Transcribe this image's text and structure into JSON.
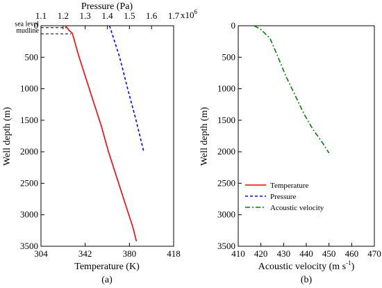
{
  "chart_data": [
    {
      "type": "line",
      "panel_label": "(a)",
      "y_axis": {
        "label": "Well depth (m)",
        "range": [
          0,
          3500
        ],
        "inverted": true,
        "ticks": [
          0,
          500,
          1000,
          1500,
          2000,
          2500,
          3000,
          3500
        ]
      },
      "x_axis": {
        "label": "Temperature (K)",
        "range": [
          304,
          418
        ],
        "ticks": [
          304,
          342,
          380,
          418
        ]
      },
      "x2_axis": {
        "label": "Pressure (Pa)",
        "multiplier_label": "x10",
        "multiplier_exp": "6",
        "range": [
          1.1,
          1.7
        ],
        "ticks": [
          "1.1",
          "1.2",
          "1.3",
          "1.4",
          "1.5",
          "1.6",
          "1.7"
        ]
      },
      "annotations": [
        {
          "text": "sea level",
          "depth": 30,
          "temperature_end": 326
        },
        {
          "text": "mudline",
          "depth": 130,
          "temperature_end": 330
        }
      ],
      "series": [
        {
          "name": "Temperature",
          "axis": "x",
          "color": "#ff0000",
          "dash": "solid",
          "points": [
            [
              325,
              0
            ],
            [
              328,
              70
            ],
            [
              331,
              120
            ],
            [
              336,
              450
            ],
            [
              342,
              800
            ],
            [
              349,
              1200
            ],
            [
              356,
              1600
            ],
            [
              362,
              2000
            ],
            [
              369,
              2400
            ],
            [
              376,
              2800
            ],
            [
              383,
              3200
            ],
            [
              386,
              3420
            ]
          ]
        },
        {
          "name": "Pressure",
          "axis": "x2",
          "color": "#0000ff",
          "dash": "dashed",
          "points": [
            [
              1.41,
              0
            ],
            [
              1.424,
              150
            ],
            [
              1.456,
              500
            ],
            [
              1.492,
              1000
            ],
            [
              1.53,
              1500
            ],
            [
              1.565,
              2000
            ]
          ]
        }
      ]
    },
    {
      "type": "line",
      "panel_label": "(b)",
      "y_axis": {
        "label": "Well depth (m)",
        "range": [
          0,
          3500
        ],
        "inverted": true,
        "ticks": [
          0,
          500,
          1000,
          1500,
          2000,
          2500,
          3000,
          3500
        ]
      },
      "x_axis": {
        "label_prefix": "Acoustic velocity (m s",
        "label_sup": "-1",
        "label_suffix": ")",
        "range": [
          410,
          470
        ],
        "ticks": [
          410,
          420,
          430,
          440,
          450,
          460,
          470
        ]
      },
      "legend": {
        "placement": "lower-left",
        "entries": [
          {
            "label": "Temperature",
            "color": "#ff0000",
            "dash": "solid"
          },
          {
            "label": "Pressure",
            "color": "#0000ff",
            "dash": "dashed"
          },
          {
            "label": "Acoustic velocity",
            "color": "#008000",
            "dash": "dashdot"
          }
        ]
      },
      "series": [
        {
          "name": "Acoustic velocity",
          "color": "#008000",
          "dash": "dashdot",
          "points": [
            [
              417,
              0
            ],
            [
              420,
              60
            ],
            [
              424,
              200
            ],
            [
              427,
              450
            ],
            [
              431,
              800
            ],
            [
              435,
              1100
            ],
            [
              439,
              1400
            ],
            [
              443,
              1650
            ],
            [
              447,
              1850
            ],
            [
              450,
              2020
            ]
          ]
        }
      ]
    }
  ]
}
